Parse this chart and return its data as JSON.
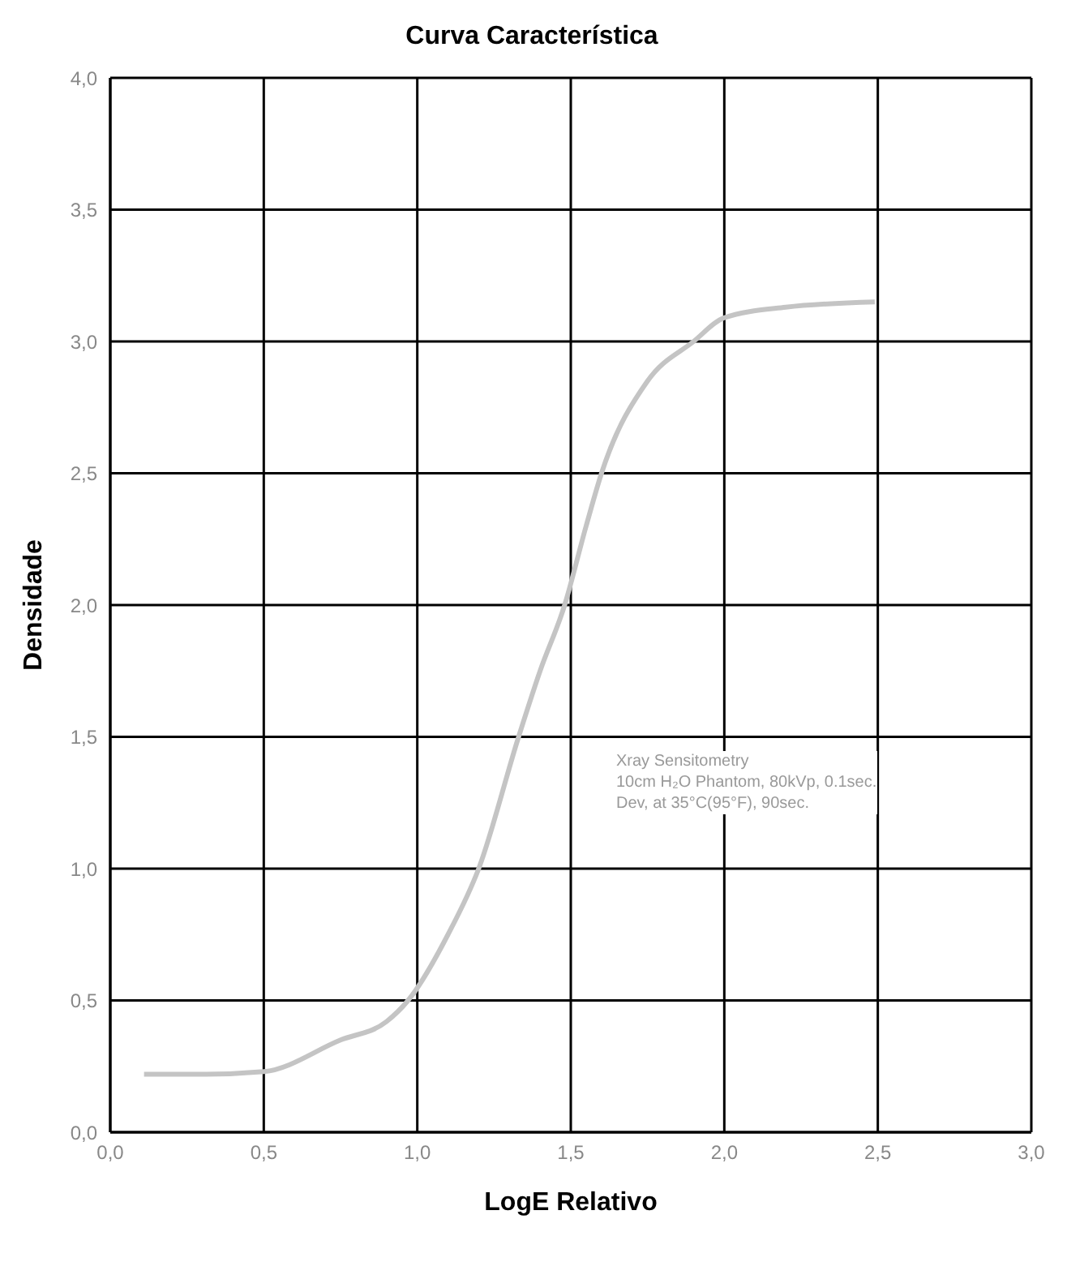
{
  "chart_data": {
    "type": "line",
    "title": "Curva Característica",
    "xlabel": "LogE Relativo",
    "ylabel": "Densidade",
    "x": [
      0.11,
      0.3,
      0.5,
      0.75,
      0.9,
      0.97,
      1.1,
      1.2,
      1.33,
      1.4,
      1.48,
      1.55,
      1.6,
      1.75,
      1.9,
      2.0,
      2.2,
      2.49
    ],
    "series": [
      {
        "color": "#c4c4c4",
        "values": [
          0.22,
          0.22,
          0.23,
          0.35,
          0.42,
          0.5,
          0.75,
          1.0,
          1.5,
          1.75,
          2.0,
          2.3,
          2.5,
          2.85,
          3.0,
          3.09,
          3.13,
          3.15
        ]
      }
    ],
    "xlim": [
      0,
      3
    ],
    "ylim": [
      0,
      4
    ],
    "xticks": [
      {
        "value": 0,
        "label": "0,0"
      },
      {
        "value": 0.5,
        "label": "0,5"
      },
      {
        "value": 1,
        "label": "1,0"
      },
      {
        "value": 1.5,
        "label": "1,5"
      },
      {
        "value": 2,
        "label": "2,0"
      },
      {
        "value": 2.5,
        "label": "2,5"
      },
      {
        "value": 3,
        "label": "3,0"
      }
    ],
    "yticks": [
      {
        "value": 0,
        "label": "0,0"
      },
      {
        "value": 0.5,
        "label": "0,5"
      },
      {
        "value": 1,
        "label": "1,0"
      },
      {
        "value": 1.5,
        "label": "1,5"
      },
      {
        "value": 2,
        "label": "2,0"
      },
      {
        "value": 2.5,
        "label": "2,5"
      },
      {
        "value": 3,
        "label": "3,0"
      },
      {
        "value": 3.5,
        "label": "3,5"
      },
      {
        "value": 4,
        "label": "4,0"
      }
    ],
    "grid": true,
    "marker": "none",
    "line_style": "solid",
    "legend": false,
    "annotations": [
      "Xray Sensitometry",
      "10cm H₂O Phantom, 80kVp, 0.1sec.",
      "Dev, at 35°C(95°F), 90sec."
    ]
  }
}
